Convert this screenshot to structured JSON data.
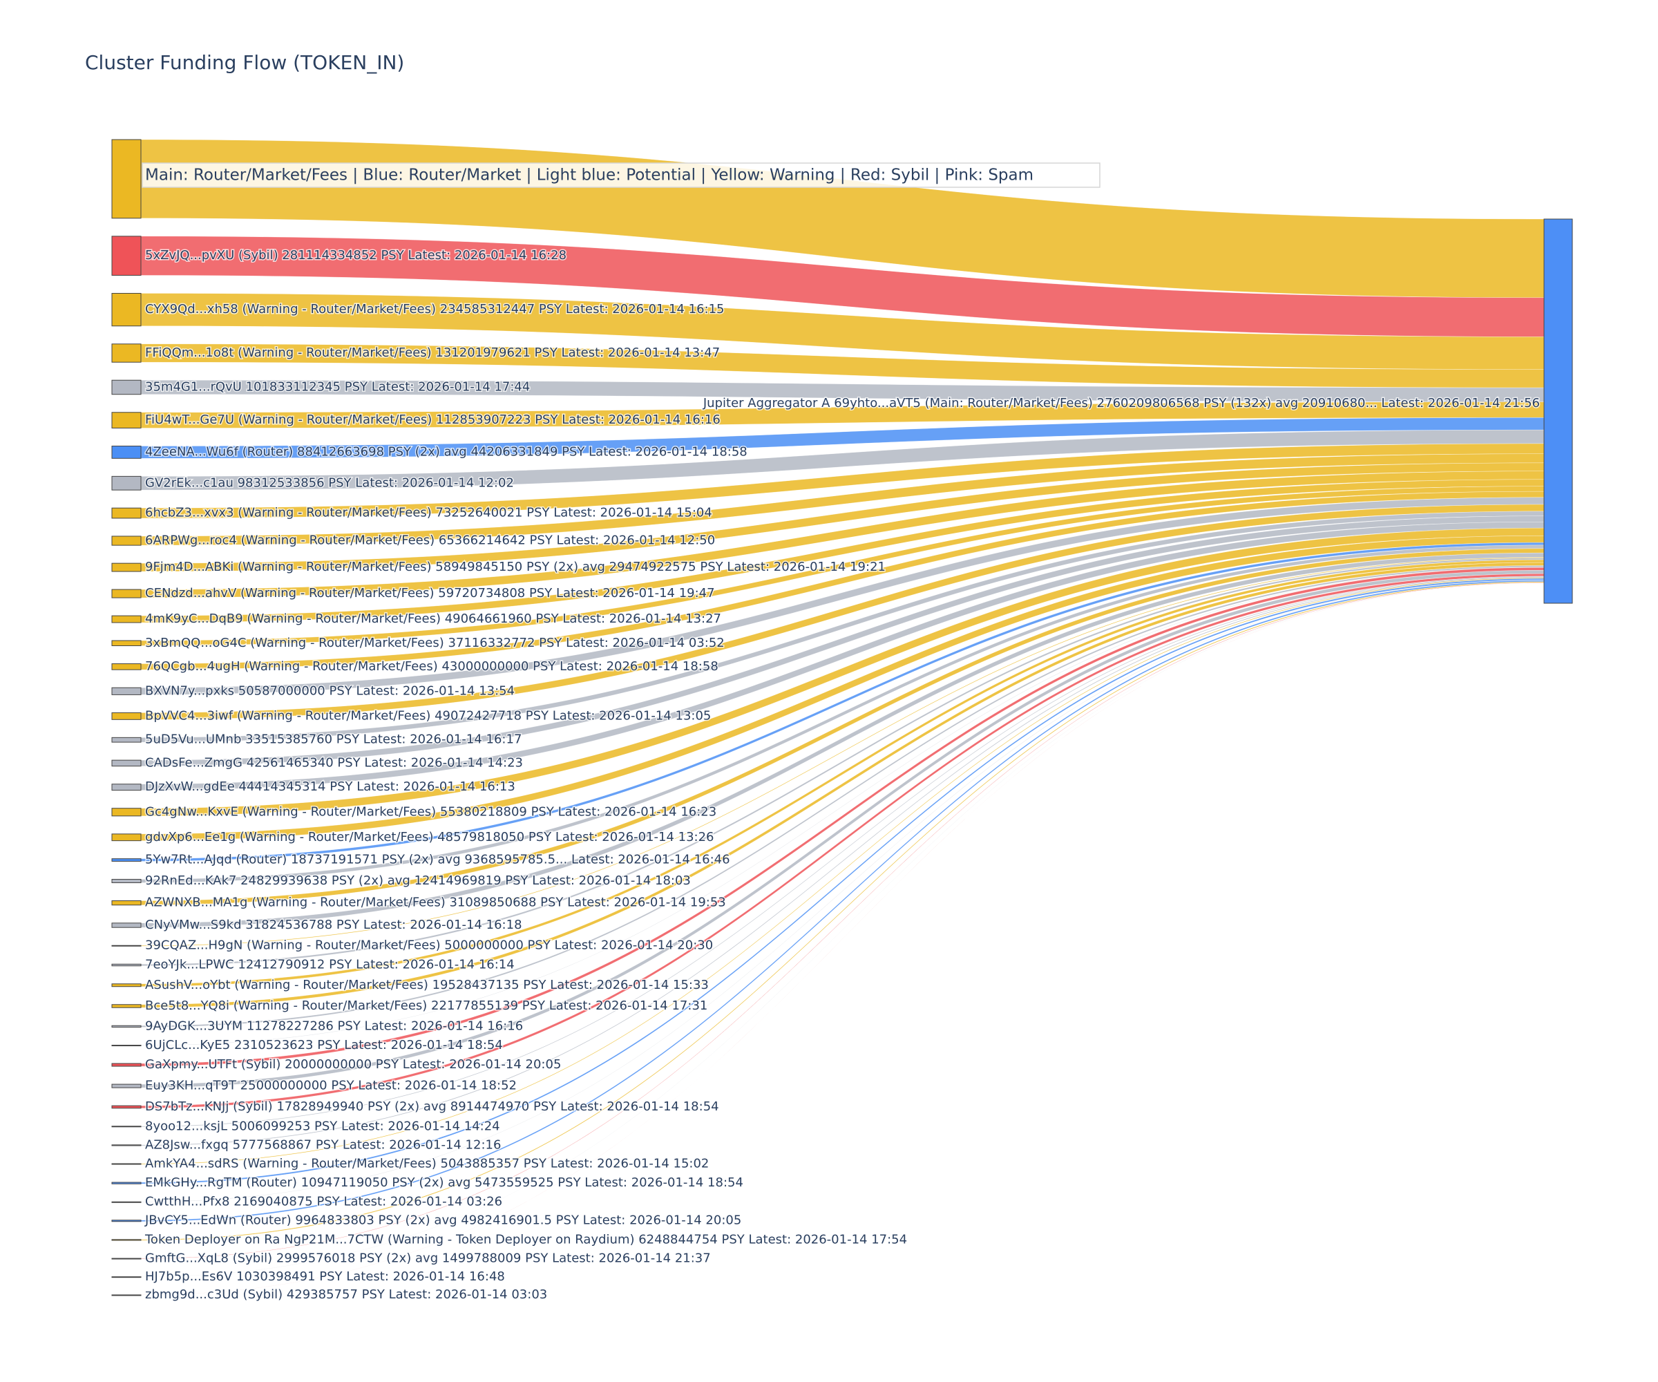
{
  "chart_data": {
    "type": "sankey",
    "title": "Cluster Funding Flow (TOKEN_IN)",
    "annotation": "Main: Router/Market/Fees  |  Blue: Router/Market | Light blue: Potential | Yellow: Warning | Red: Sybil | Pink: Spam",
    "target": {
      "label": "Jupiter Aggregator A 69yhto...aVT5 (Main: Router/Market/Fees) 2760209806568 PSY (132x) avg 20910680... Latest: 2026-01-14 21:56",
      "value": 2760209806568,
      "color": "#4d8ff6"
    },
    "sources": [
      {
        "label": null,
        "value": 565000000000,
        "color": "#ebb823"
      },
      {
        "label": "5xZvJQ...pvXU (Sybil) 281114334852 PSY Latest: 2026-01-14 16:28",
        "value": 281114334852,
        "color": "#ef5358"
      },
      {
        "label": "CYX9Qd...xh58 (Warning - Router/Market/Fees) 234585312447 PSY Latest: 2026-01-14 16:15",
        "value": 234585312447,
        "color": "#ebb823"
      },
      {
        "label": "FFiQQm...1o8t (Warning - Router/Market/Fees) 131201979621 PSY Latest: 2026-01-14 13:47",
        "value": 131201979621,
        "color": "#ebb823"
      },
      {
        "label": "35m4G1...rQvU 101833112345 PSY Latest: 2026-01-14 17:44",
        "value": 101833112345,
        "color": "#b3b8c3"
      },
      {
        "label": "FiU4wT...Ge7U (Warning - Router/Market/Fees) 112853907223 PSY Latest: 2026-01-14 16:16",
        "value": 112853907223,
        "color": "#ebb823"
      },
      {
        "label": "4ZeeNA...Wu6f (Router) 88412663698 PSY (2x) avg 44206331849 PSY Latest: 2026-01-14 18:58",
        "value": 88412663698,
        "color": "#4b8ff5"
      },
      {
        "label": "GV2rEk...c1au 98312533856 PSY Latest: 2026-01-14 12:02",
        "value": 98312533856,
        "color": "#b3b8c3"
      },
      {
        "label": "6hcbZ3...xvx3 (Warning - Router/Market/Fees) 73252640021 PSY Latest: 2026-01-14 15:04",
        "value": 73252640021,
        "color": "#ebb823"
      },
      {
        "label": "6ARPWg...roc4 (Warning - Router/Market/Fees) 65366214642 PSY Latest: 2026-01-14 12:50",
        "value": 65366214642,
        "color": "#ebb823"
      },
      {
        "label": "9Fjm4D...ABKi (Warning - Router/Market/Fees) 58949845150 PSY (2x) avg 29474922575 PSY Latest: 2026-01-14 19:21",
        "value": 58949845150,
        "color": "#ebb823"
      },
      {
        "label": "CENdzd...ahvV (Warning - Router/Market/Fees) 59720734808 PSY Latest: 2026-01-14 19:47",
        "value": 59720734808,
        "color": "#ebb823"
      },
      {
        "label": "4mK9yC...DqB9 (Warning - Router/Market/Fees) 49064661960 PSY Latest: 2026-01-14 13:27",
        "value": 49064661960,
        "color": "#ebb823"
      },
      {
        "label": "3xBmQQ...oG4C (Warning - Router/Market/Fees) 37116332772 PSY Latest: 2026-01-14 03:52",
        "value": 37116332772,
        "color": "#ebb823"
      },
      {
        "label": "76QCgb...4ugH (Warning - Router/Market/Fees) 43000000000 PSY Latest: 2026-01-14 18:58",
        "value": 43000000000,
        "color": "#ebb823"
      },
      {
        "label": "BXVN7y...pxks 50587000000 PSY Latest: 2026-01-14 13:54",
        "value": 50587000000,
        "color": "#b3b8c3"
      },
      {
        "label": "BpVVC4...3iwf (Warning - Router/Market/Fees) 49072427718 PSY Latest: 2026-01-14 13:05",
        "value": 49072427718,
        "color": "#ebb823"
      },
      {
        "label": "5uD5Vu...UMnb 33515385760 PSY Latest: 2026-01-14 16:17",
        "value": 33515385760,
        "color": "#b3b8c3"
      },
      {
        "label": "CADsFe...ZmgG 42561465340 PSY Latest: 2026-01-14 14:23",
        "value": 42561465340,
        "color": "#b3b8c3"
      },
      {
        "label": "DJzXvW...gdEe 44414345314 PSY Latest: 2026-01-14 16:13",
        "value": 44414345314,
        "color": "#b3b8c3"
      },
      {
        "label": "Gc4gNw...KxvE (Warning - Router/Market/Fees) 55380218809 PSY Latest: 2026-01-14 16:23",
        "value": 55380218809,
        "color": "#ebb823"
      },
      {
        "label": "gdvXp6...Ee1g (Warning - Router/Market/Fees) 48579818050 PSY Latest: 2026-01-14 13:26",
        "value": 48579818050,
        "color": "#ebb823"
      },
      {
        "label": "5Yw7Rt...AJqd (Router) 18737191571 PSY (2x) avg 9368595785.5... Latest: 2026-01-14 16:46",
        "value": 18737191571,
        "color": "#4b8ff5"
      },
      {
        "label": "92RnEd...KAk7 24829939638 PSY (2x) avg 12414969819 PSY Latest: 2026-01-14 18:03",
        "value": 24829939638,
        "color": "#b3b8c3"
      },
      {
        "label": "AZWNXB...MA1g (Warning - Router/Market/Fees) 31089850688 PSY Latest: 2026-01-14 19:53",
        "value": 31089850688,
        "color": "#ebb823"
      },
      {
        "label": "CNyVMw...S9kd 31824536788 PSY Latest: 2026-01-14 16:18",
        "value": 31824536788,
        "color": "#b3b8c3"
      },
      {
        "label": "39CQAZ...H9gN (Warning - Router/Market/Fees) 5000000000 PSY Latest: 2026-01-14 20:30",
        "value": 5000000000,
        "color": "#ebb823"
      },
      {
        "label": "7eoYJk...LPWC 12412790912 PSY Latest: 2026-01-14 16:14",
        "value": 12412790912,
        "color": "#b3b8c3"
      },
      {
        "label": "ASushV...oYbt (Warning - Router/Market/Fees) 19528437135 PSY Latest: 2026-01-14 15:33",
        "value": 19528437135,
        "color": "#ebb823"
      },
      {
        "label": "Bce5t8...YQ8i (Warning - Router/Market/Fees) 22177855139 PSY Latest: 2026-01-14 17:31",
        "value": 22177855139,
        "color": "#ebb823"
      },
      {
        "label": "9AyDGK...3UYM 11278227286 PSY Latest: 2026-01-14 16:16",
        "value": 11278227286,
        "color": "#b3b8c3"
      },
      {
        "label": "6UjCLc...KyE5 2310523623 PSY Latest: 2026-01-14 18:54",
        "value": 2310523623,
        "color": "#b3b8c3"
      },
      {
        "label": "GaXpmy...UTFt (Sybil) 20000000000 PSY Latest: 2026-01-14 20:05",
        "value": 20000000000,
        "color": "#ef5358"
      },
      {
        "label": "Euy3KH...qT9T 25000000000 PSY Latest: 2026-01-14 18:52",
        "value": 25000000000,
        "color": "#b3b8c3"
      },
      {
        "label": "DS7bTz...KNJj (Sybil) 17828949940 PSY (2x) avg 8914474970 PSY Latest: 2026-01-14 18:54",
        "value": 17828949940,
        "color": "#ef5358"
      },
      {
        "label": "8yoo12...ksjL 5006099253 PSY Latest: 2026-01-14 14:24",
        "value": 5006099253,
        "color": "#b3b8c3"
      },
      {
        "label": "AZ8Jsw...fxgq 5777568867 PSY Latest: 2026-01-14 12:16",
        "value": 5777568867,
        "color": "#b3b8c3"
      },
      {
        "label": "AmkYA4...sdRS (Warning - Router/Market/Fees) 5043885357 PSY Latest: 2026-01-14 15:02",
        "value": 5043885357,
        "color": "#ebb823"
      },
      {
        "label": "EMkGHy...RgTM (Router) 10947119050 PSY (2x) avg 5473559525 PSY Latest: 2026-01-14 18:54",
        "value": 10947119050,
        "color": "#4b8ff5"
      },
      {
        "label": "CwtthH...Pfx8 2169040875 PSY Latest: 2026-01-14 03:26",
        "value": 2169040875,
        "color": "#b3b8c3"
      },
      {
        "label": "JBvCY5...EdWn (Router) 9964833803 PSY (2x) avg 4982416901.5 PSY Latest: 2026-01-14 20:05",
        "value": 9964833803,
        "color": "#4b8ff5"
      },
      {
        "label": "Token Deployer on Ra NgP21M...7CTW (Warning - Token Deployer on Raydium) 6248844754 PSY Latest: 2026-01-14 17:54",
        "value": 6248844754,
        "color": "#ebb823"
      },
      {
        "label": "GmftG...XqL8 (Sybil) 2999576018 PSY (2x) avg 1499788009 PSY Latest: 2026-01-14 21:37",
        "value": 2999576018,
        "color": "#ef5358"
      },
      {
        "label": "HJ7b5p...Es6V 1030398491 PSY Latest: 2026-01-14 16:48",
        "value": 1030398491,
        "color": "#b3b8c3"
      },
      {
        "label": "zbmg9d...c3Ud (Sybil) 429385757 PSY Latest: 2026-01-14 03:03",
        "value": 429385757,
        "color": "#ef5358"
      }
    ]
  }
}
